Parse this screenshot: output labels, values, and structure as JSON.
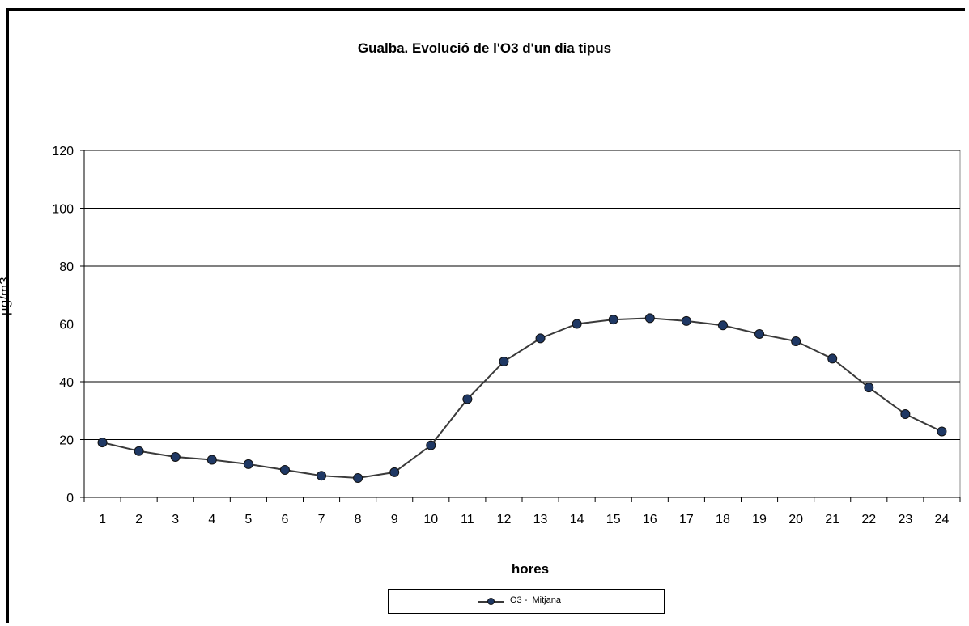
{
  "chart_data": {
    "type": "line",
    "title": "Gualba. Evolució de l'O3 d'un dia tipus",
    "xlabel": "hores",
    "ylabel": "µg/m3",
    "ylim": [
      0,
      120
    ],
    "yticks": [
      0,
      20,
      40,
      60,
      80,
      100,
      120
    ],
    "categories": [
      "1",
      "2",
      "3",
      "4",
      "5",
      "6",
      "7",
      "8",
      "9",
      "10",
      "11",
      "12",
      "13",
      "14",
      "15",
      "16",
      "17",
      "18",
      "19",
      "20",
      "21",
      "22",
      "23",
      "24"
    ],
    "series": [
      {
        "name": "O3 -  Mitjana",
        "values": [
          19,
          16,
          14,
          13,
          11.5,
          9.5,
          7.5,
          6.7,
          8.7,
          18,
          34,
          47,
          55,
          60,
          61.5,
          62,
          61,
          59.5,
          56.5,
          54,
          48,
          38,
          28.8,
          22.8
        ]
      }
    ],
    "grid": true,
    "legend": "bottom",
    "colors": {
      "line": "#3a3a3a",
      "marker": "#1f3864"
    }
  }
}
